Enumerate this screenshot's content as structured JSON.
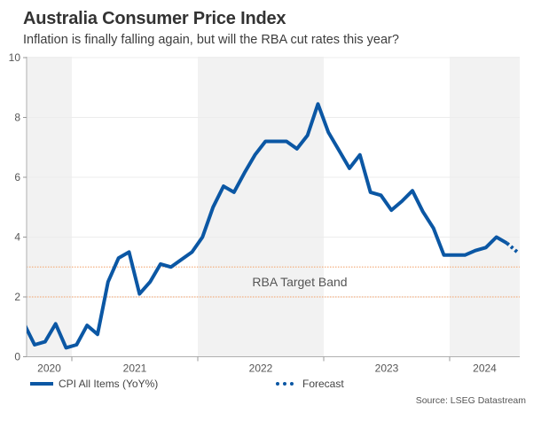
{
  "header": {
    "title": "Australia Consumer Price Index",
    "subtitle": "Inflation is finally falling again, but will the RBA cut rates this year?"
  },
  "legend": {
    "actual_label": "CPI All Items (YoY%)",
    "forecast_label": "Forecast"
  },
  "source": "Source: LSEG Datastream",
  "colors": {
    "line": "#0b57a4",
    "band_line": "#f4b183",
    "shade": "#f2f2f2",
    "grid": "#ececec"
  },
  "chart_data": {
    "type": "line",
    "title": "Australia Consumer Price Index",
    "subtitle": "Inflation is finally falling again, but will the RBA cut rates this year?",
    "xlabel": "",
    "ylabel": "",
    "ylim": [
      0,
      10
    ],
    "yticks": [
      0,
      2,
      4,
      6,
      8,
      10
    ],
    "x_range": [
      "2020-08",
      "2024-07"
    ],
    "xtick_labels": [
      "2020",
      "2021",
      "2022",
      "2023",
      "2024"
    ],
    "shaded_years": [
      "2020",
      "2022",
      "2024"
    ],
    "grid": true,
    "legend_position": "bottom",
    "annotations": [
      {
        "type": "band",
        "label": "RBA Target Band",
        "y_low": 2,
        "y_high": 3,
        "style": "dotted"
      }
    ],
    "series": [
      {
        "name": "CPI All Items (YoY%)",
        "style": "solid",
        "x": [
          "2020-08",
          "2020-09",
          "2020-10",
          "2020-11",
          "2020-12",
          "2021-01",
          "2021-02",
          "2021-03",
          "2021-04",
          "2021-05",
          "2021-06",
          "2021-07",
          "2021-08",
          "2021-09",
          "2021-10",
          "2021-11",
          "2021-12",
          "2022-01",
          "2022-02",
          "2022-03",
          "2022-04",
          "2022-05",
          "2022-06",
          "2022-07",
          "2022-08",
          "2022-09",
          "2022-10",
          "2022-11",
          "2022-12",
          "2023-01",
          "2023-02",
          "2023-03",
          "2023-04",
          "2023-05",
          "2023-06",
          "2023-07",
          "2023-08",
          "2023-09",
          "2023-10",
          "2023-11",
          "2023-12",
          "2024-01",
          "2024-02",
          "2024-03",
          "2024-04",
          "2024-05",
          "2024-06"
        ],
        "values": [
          1.1,
          0.4,
          0.5,
          1.1,
          0.3,
          0.4,
          1.05,
          0.75,
          2.5,
          3.3,
          3.5,
          2.1,
          2.5,
          3.1,
          3.0,
          3.25,
          3.5,
          4.0,
          5.0,
          5.7,
          5.5,
          6.15,
          6.75,
          7.2,
          7.2,
          7.2,
          6.95,
          7.4,
          8.45,
          7.5,
          6.9,
          6.3,
          6.75,
          5.5,
          5.4,
          4.9,
          5.2,
          5.55,
          4.85,
          4.3,
          3.4,
          3.4,
          3.4,
          3.55,
          3.65,
          4.0,
          3.8
        ]
      },
      {
        "name": "Forecast",
        "style": "dotted",
        "x": [
          "2024-06",
          "2024-07"
        ],
        "values": [
          3.8,
          3.5
        ]
      }
    ]
  }
}
